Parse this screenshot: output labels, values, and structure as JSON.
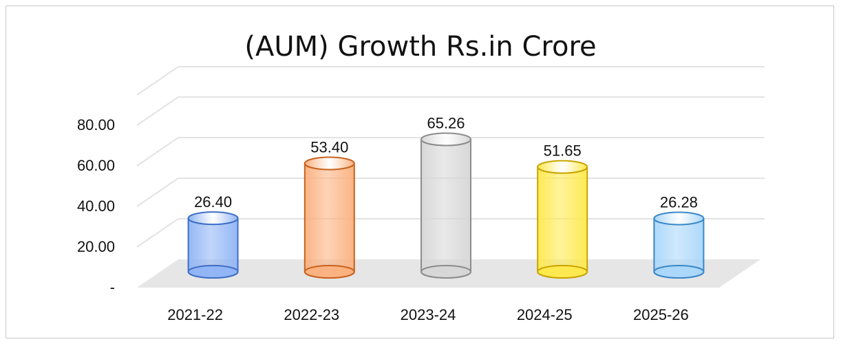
{
  "chart_data": {
    "type": "bar",
    "style": "3d-cylinder",
    "title": "(AUM) Growth Rs.in Crore",
    "categories": [
      "2021-22",
      "2022-23",
      "2023-24",
      "2024-25",
      "2025-26"
    ],
    "values": [
      26.4,
      53.4,
      65.26,
      51.65,
      26.28
    ],
    "data_labels": [
      "26.40",
      "53.40",
      "65.26",
      "51.65",
      "26.28"
    ],
    "y_ticks": [
      {
        "value": 0,
        "label": "-"
      },
      {
        "value": 20,
        "label": "20.00"
      },
      {
        "value": 40,
        "label": "40.00"
      },
      {
        "value": 60,
        "label": "60.00"
      },
      {
        "value": 80,
        "label": "80.00"
      }
    ],
    "ylim": [
      0,
      80
    ],
    "grid": true,
    "legend": "none",
    "colors": {
      "fills": [
        "#8fb4f5",
        "#fbb07e",
        "#d6d6d6",
        "#ffe94a",
        "#a9d6fb"
      ],
      "strokes": [
        "#3f6fc5",
        "#c8621e",
        "#8c8c8c",
        "#c9a300",
        "#3a87c8"
      ],
      "floor": "#e6e6e6",
      "grid": "#e3e3e3"
    }
  }
}
